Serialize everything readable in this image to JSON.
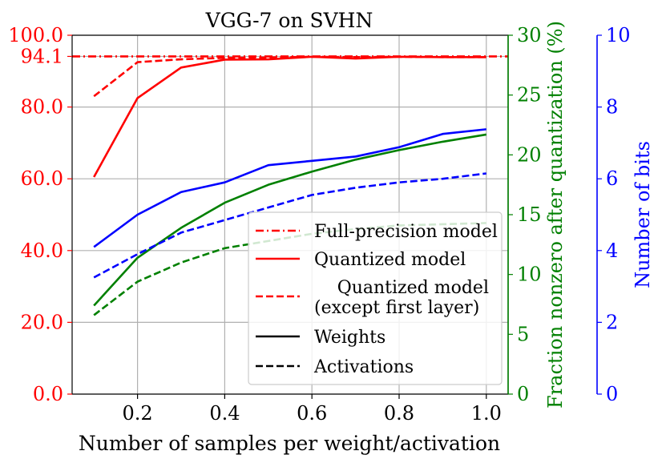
{
  "chart_data": {
    "type": "line",
    "title": "VGG-7 on SVHN",
    "xlabel": "Number of samples per weight/activation",
    "ylabel_right_1": "Fraction nonzero after quantization (%)",
    "ylabel_right_2": "Number of bits",
    "xlim": [
      0.05,
      1.05
    ],
    "xticks": [
      "0.2",
      "0.4",
      "0.6",
      "0.8",
      "1.0"
    ],
    "xtick_values": [
      0.2,
      0.4,
      0.6,
      0.8,
      1.0
    ],
    "axes": {
      "left": {
        "ylim": [
          0,
          100
        ],
        "color": "#ff0000",
        "ticks": [
          "0.0",
          "20.0",
          "40.0",
          "60.0",
          "80.0",
          "94.1",
          "100.0"
        ],
        "tick_values": [
          0,
          20,
          40,
          60,
          80,
          94.1,
          100
        ]
      },
      "right1": {
        "ylim": [
          0,
          30
        ],
        "color": "#008000",
        "ticks": [
          "0",
          "5",
          "10",
          "15",
          "20",
          "25",
          "30"
        ],
        "tick_values": [
          0,
          5,
          10,
          15,
          20,
          25,
          30
        ]
      },
      "right2": {
        "ylim": [
          0,
          10
        ],
        "color": "#0000ff",
        "ticks": [
          "0",
          "2",
          "4",
          "6",
          "8",
          "10"
        ],
        "tick_values": [
          0,
          2,
          4,
          6,
          8,
          10
        ]
      }
    },
    "x": [
      0.1,
      0.2,
      0.3,
      0.4,
      0.5,
      0.6,
      0.7,
      0.8,
      0.9,
      1.0
    ],
    "series": [
      {
        "name": "Full-precision model",
        "axis": "left",
        "color": "#ff0000",
        "dash": "dashdot",
        "values": [
          94.1,
          94.1,
          94.1,
          94.1,
          94.1,
          94.1,
          94.1,
          94.1,
          94.1,
          94.1
        ]
      },
      {
        "name": "Quantized model",
        "axis": "left",
        "color": "#ff0000",
        "dash": "solid",
        "values": [
          60.5,
          82.5,
          91.0,
          93.2,
          93.3,
          94.0,
          93.5,
          94.0,
          93.9,
          93.9
        ]
      },
      {
        "name": "Quantized model (except first layer)",
        "axis": "left",
        "color": "#ff0000",
        "dash": "dashed",
        "values": [
          83.0,
          92.5,
          93.3,
          93.7,
          93.8,
          94.0,
          93.9,
          94.0,
          93.9,
          93.9
        ]
      },
      {
        "name": "Fraction nonzero (weights)",
        "axis": "right1",
        "color": "#008000",
        "dash": "solid",
        "values": [
          7.4,
          11.4,
          13.9,
          16.0,
          17.5,
          18.6,
          19.6,
          20.4,
          21.1,
          21.7
        ]
      },
      {
        "name": "Fraction nonzero (activations)",
        "axis": "right1",
        "color": "#008000",
        "dash": "dashed",
        "values": [
          6.6,
          9.4,
          11.0,
          12.2,
          12.8,
          13.4,
          13.8,
          14.1,
          14.2,
          14.3
        ]
      },
      {
        "name": "Number of bits (weights)",
        "axis": "right2",
        "color": "#0000ff",
        "dash": "solid",
        "values": [
          4.1,
          5.0,
          5.63,
          5.9,
          6.38,
          6.5,
          6.62,
          6.88,
          7.25,
          7.38
        ]
      },
      {
        "name": "Number of bits (activations)",
        "axis": "right2",
        "color": "#0000ff",
        "dash": "dashed",
        "values": [
          3.25,
          3.9,
          4.5,
          4.85,
          5.2,
          5.55,
          5.75,
          5.9,
          6.0,
          6.15
        ]
      }
    ],
    "legend": {
      "position": "center-right",
      "entries": [
        {
          "label": "Full-precision model",
          "color": "#ff0000",
          "dash": "dashdot"
        },
        {
          "label": "Quantized model",
          "color": "#ff0000",
          "dash": "solid"
        },
        {
          "label": "Quantized model",
          "label2": "(except first layer)",
          "color": "#ff0000",
          "dash": "dashed"
        },
        {
          "label": "Weights",
          "color": "#000000",
          "dash": "solid"
        },
        {
          "label": "Activations",
          "color": "#000000",
          "dash": "dashed"
        }
      ]
    },
    "grid": true
  }
}
